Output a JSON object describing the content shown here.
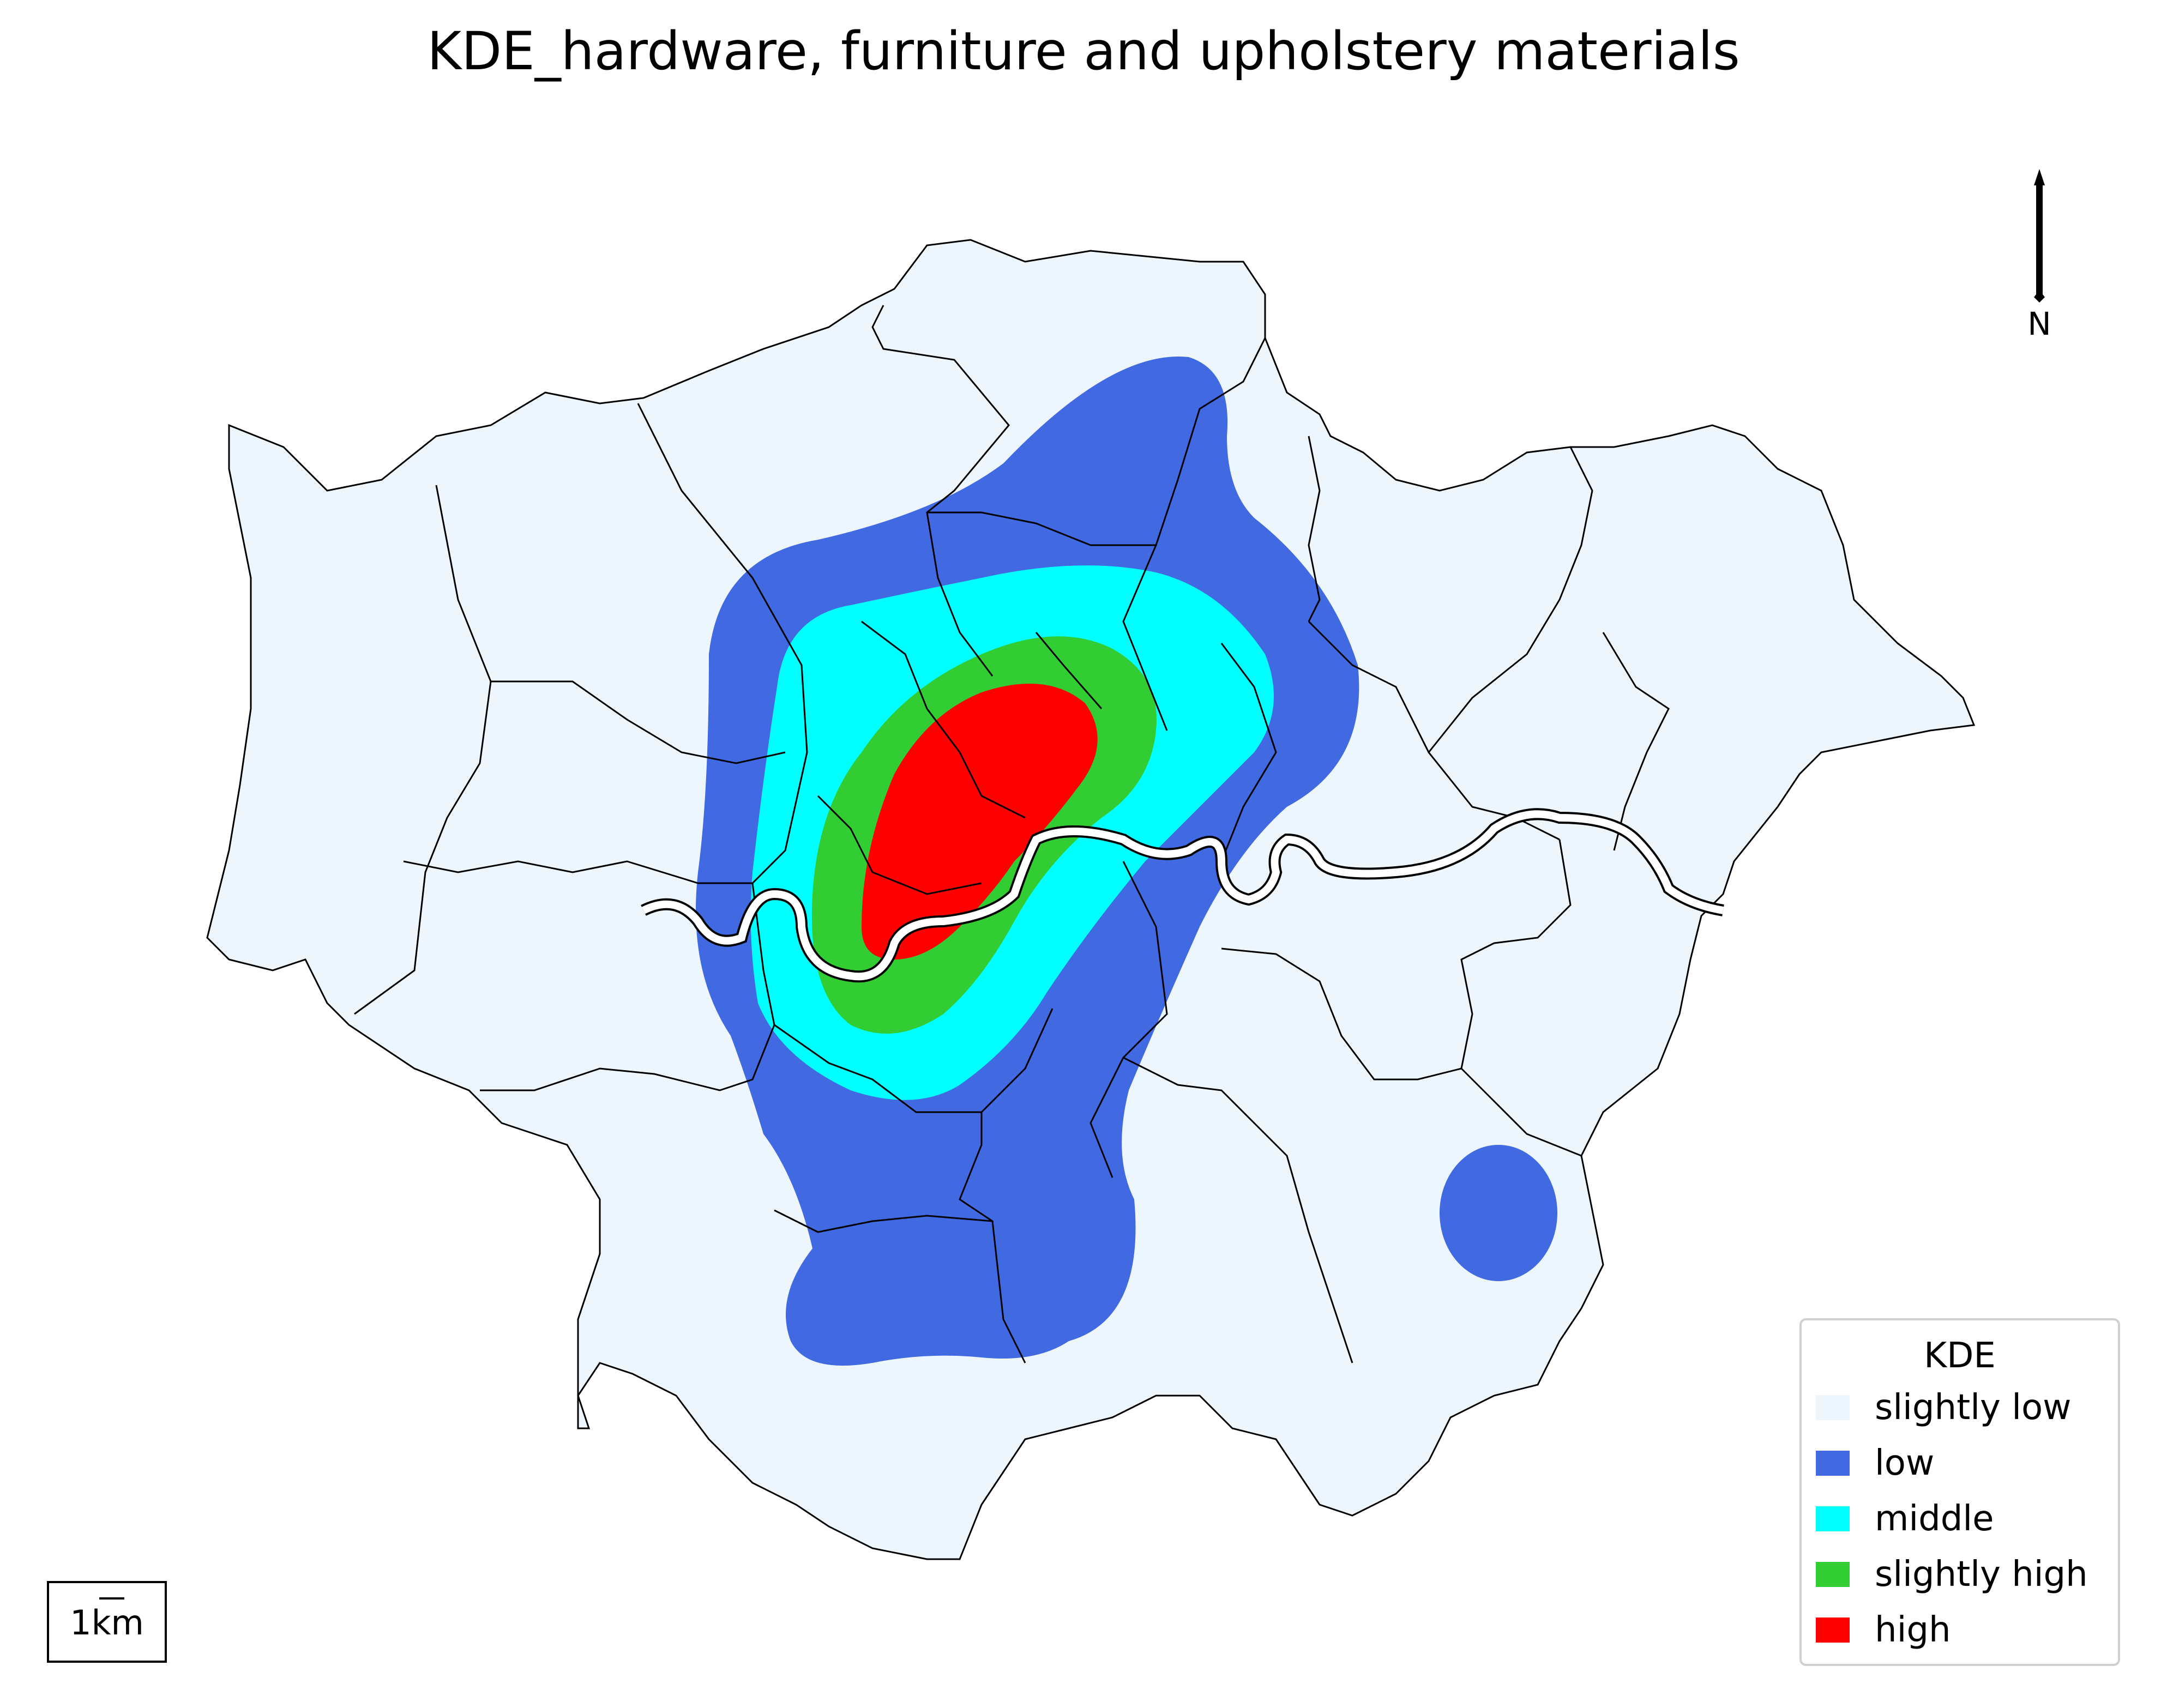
{
  "title": "KDE_hardware, furniture and upholstery materials",
  "north_label": "N",
  "scale_label": "1km",
  "legend": {
    "title": "KDE",
    "items": [
      {
        "label": "slightly low",
        "color": "#eef6fd"
      },
      {
        "label": "low",
        "color": "#4169e1"
      },
      {
        "label": "middle",
        "color": "#00ffff"
      },
      {
        "label": "slightly high",
        "color": "#32cd32"
      },
      {
        "label": "high",
        "color": "#ff0000"
      }
    ]
  },
  "colors": {
    "background_fill": "#eef6fd",
    "boundary_stroke": "#000000",
    "river": "#ffffff"
  }
}
